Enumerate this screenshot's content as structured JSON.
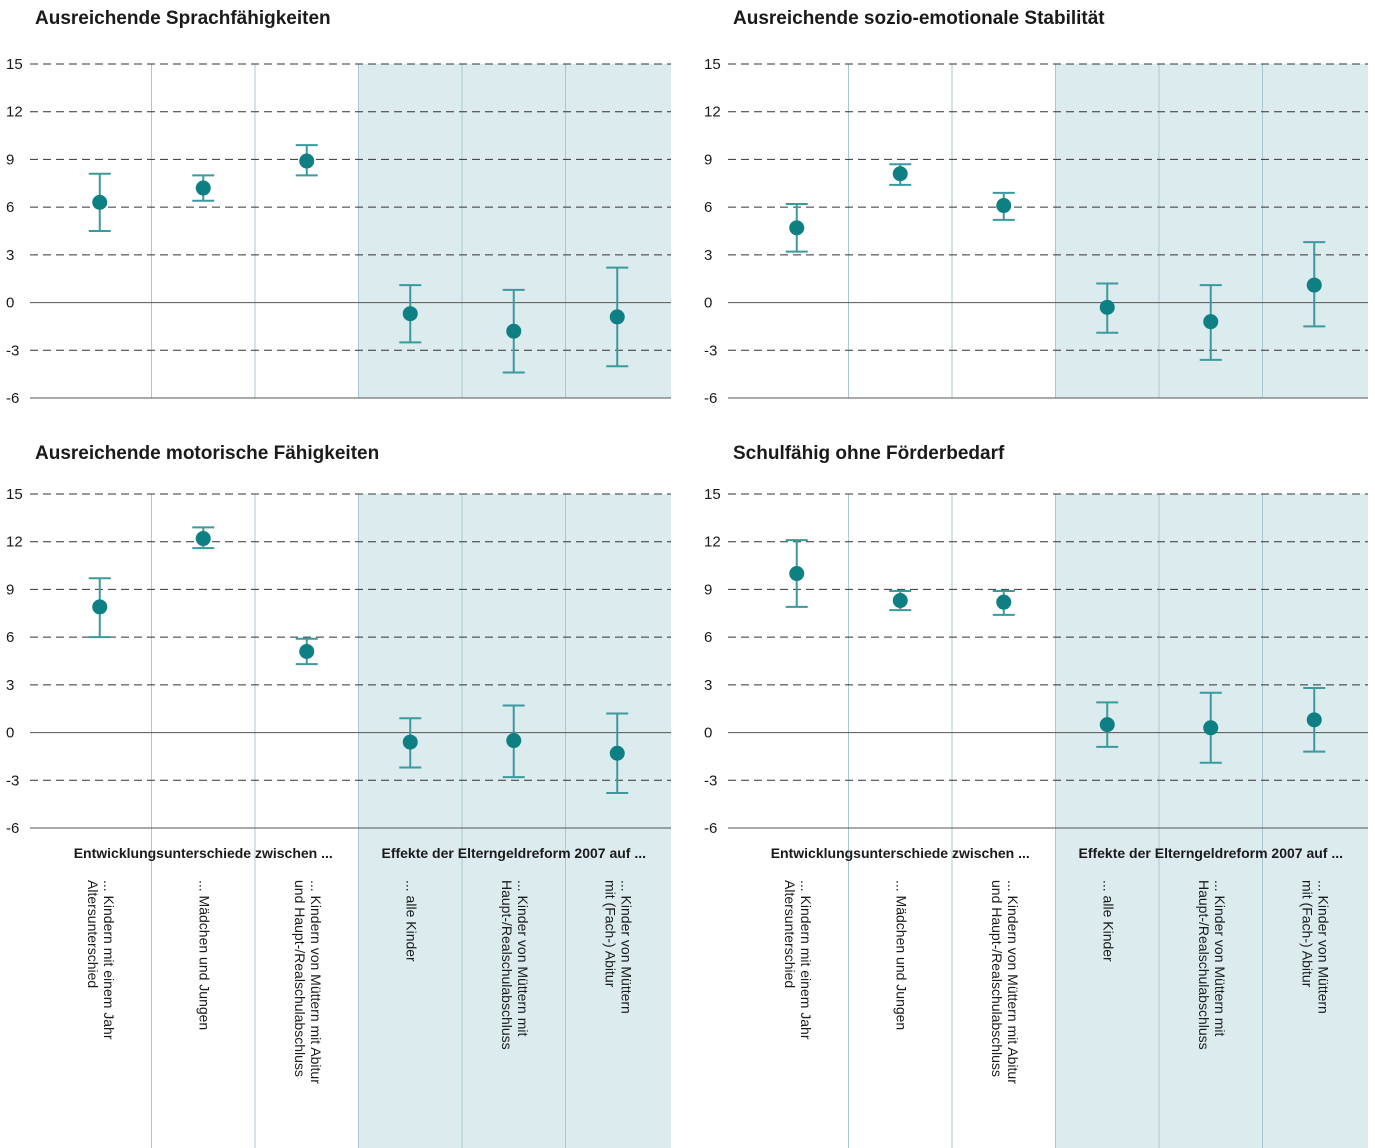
{
  "colors": {
    "marker": "#0e7f82",
    "errorbar": "#3a9a9d",
    "shade": "#dbebee",
    "divider": "#a9c9d2",
    "grid": "#333333",
    "zero": "#555555"
  },
  "groups": {
    "left": "Entwicklungsunterschiede zwischen ...",
    "right": "Effekte der Elterngeldreform 2007 auf ..."
  },
  "categories": [
    [
      "... Kindern mit einem Jahr",
      "Altersunterschied"
    ],
    [
      "... Mädchen und Jungen"
    ],
    [
      "... Kindern von Müttern mit Abitur",
      "und Haupt-/Realschulabschluss"
    ],
    [
      "... alle Kinder"
    ],
    [
      "... Kinder von Müttern mit",
      "Haupt-/Realschulabschluss"
    ],
    [
      "... Kinder von Müttern",
      "mit (Fach-) Abitur"
    ]
  ],
  "chart_data": [
    {
      "type": "scatter",
      "title": "Ausreichende Sprachfähigkeiten",
      "ylim": [
        -6,
        15
      ],
      "yticks": [
        15,
        12,
        9,
        6,
        3,
        0,
        -3,
        -6
      ],
      "points": [
        {
          "y": 6.3,
          "low": 4.5,
          "high": 8.1
        },
        {
          "y": 7.2,
          "low": 6.4,
          "high": 8.0
        },
        {
          "y": 8.9,
          "low": 8.0,
          "high": 9.9
        },
        {
          "y": -0.7,
          "low": -2.5,
          "high": 1.1
        },
        {
          "y": -1.8,
          "low": -4.4,
          "high": 0.8
        },
        {
          "y": -0.9,
          "low": -4.0,
          "high": 2.2
        }
      ]
    },
    {
      "type": "scatter",
      "title": "Ausreichende sozio-emotionale Stabilität",
      "ylim": [
        -6,
        15
      ],
      "yticks": [
        15,
        12,
        9,
        6,
        3,
        0,
        -3,
        -6
      ],
      "points": [
        {
          "y": 4.7,
          "low": 3.2,
          "high": 6.2
        },
        {
          "y": 8.1,
          "low": 7.4,
          "high": 8.7
        },
        {
          "y": 6.1,
          "low": 5.2,
          "high": 6.9
        },
        {
          "y": -0.3,
          "low": -1.9,
          "high": 1.2
        },
        {
          "y": -1.2,
          "low": -3.6,
          "high": 1.1
        },
        {
          "y": 1.1,
          "low": -1.5,
          "high": 3.8
        }
      ]
    },
    {
      "type": "scatter",
      "title": "Ausreichende motorische Fähigkeiten",
      "ylim": [
        -6,
        15
      ],
      "yticks": [
        15,
        12,
        9,
        6,
        3,
        0,
        -3,
        -6
      ],
      "points": [
        {
          "y": 7.9,
          "low": 6.0,
          "high": 9.7
        },
        {
          "y": 12.2,
          "low": 11.6,
          "high": 12.9
        },
        {
          "y": 5.1,
          "low": 4.3,
          "high": 5.9
        },
        {
          "y": -0.6,
          "low": -2.2,
          "high": 0.9
        },
        {
          "y": -0.5,
          "low": -2.8,
          "high": 1.7
        },
        {
          "y": -1.3,
          "low": -3.8,
          "high": 1.2
        }
      ]
    },
    {
      "type": "scatter",
      "title": "Schulfähig ohne Förderbedarf",
      "ylim": [
        -6,
        15
      ],
      "yticks": [
        15,
        12,
        9,
        6,
        3,
        0,
        -3,
        -6
      ],
      "points": [
        {
          "y": 10.0,
          "low": 7.9,
          "high": 12.1
        },
        {
          "y": 8.3,
          "low": 7.7,
          "high": 8.9
        },
        {
          "y": 8.2,
          "low": 7.4,
          "high": 8.9
        },
        {
          "y": 0.5,
          "low": -0.9,
          "high": 1.9
        },
        {
          "y": 0.3,
          "low": -1.9,
          "high": 2.5
        },
        {
          "y": 0.8,
          "low": -1.2,
          "high": 2.8
        }
      ]
    }
  ]
}
